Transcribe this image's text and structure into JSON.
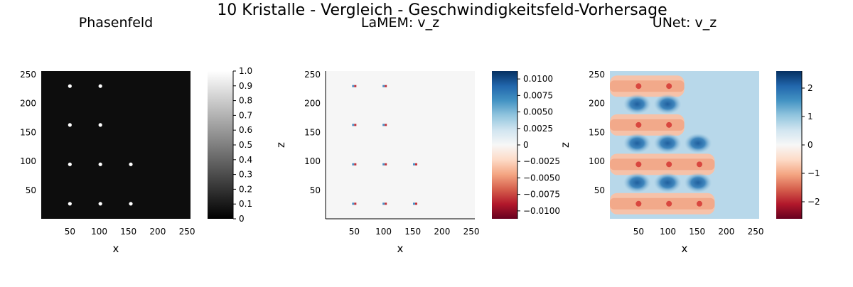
{
  "title": "10 Kristalle - Vergleich - Geschwindigkeitsfeld-Vorhersage",
  "chart_data": [
    {
      "type": "heatmap",
      "title": "Phasenfeld",
      "xlabel": "x",
      "ylabel": "",
      "xlim": [
        1,
        256
      ],
      "ylim": [
        1,
        256
      ],
      "xticks": [
        "50",
        "100",
        "150",
        "200",
        "250"
      ],
      "yticks": [
        "50",
        "100",
        "150",
        "200",
        "250"
      ],
      "background_value": 0,
      "crystals": [
        {
          "x": 50,
          "z": 230
        },
        {
          "x": 102,
          "z": 230
        },
        {
          "x": 50,
          "z": 163
        },
        {
          "x": 102,
          "z": 163
        },
        {
          "x": 50,
          "z": 95
        },
        {
          "x": 102,
          "z": 95
        },
        {
          "x": 154,
          "z": 95
        },
        {
          "x": 50,
          "z": 27
        },
        {
          "x": 102,
          "z": 27
        },
        {
          "x": 154,
          "z": 27
        }
      ],
      "crystal_value": 1,
      "colorbar": {
        "colormap": "grays",
        "range": [
          0,
          1
        ],
        "ticks": [
          "0",
          "0.1",
          "0.2",
          "0.3",
          "0.4",
          "0.5",
          "0.6",
          "0.7",
          "0.8",
          "0.9",
          "1.0"
        ],
        "tick_values": [
          0,
          0.1,
          0.2,
          0.3,
          0.4,
          0.5,
          0.6,
          0.7,
          0.8,
          0.9,
          1.0
        ]
      }
    },
    {
      "type": "heatmap",
      "title": "LaMEM: v_z",
      "xlabel": "x",
      "ylabel": "z",
      "xlim": [
        1,
        256
      ],
      "ylim": [
        1,
        256
      ],
      "xticks": [
        "50",
        "100",
        "150",
        "200",
        "250"
      ],
      "yticks": [
        "50",
        "100",
        "150",
        "200",
        "250"
      ],
      "background_value": 0,
      "colorbar": {
        "colormap": "RdBu",
        "range": [
          -0.0112,
          0.0112
        ],
        "ticks": [
          "0.0100",
          "0.0075",
          "0.0050",
          "0.0025",
          "0",
          "−0.0025",
          "−0.0050",
          "−0.0075",
          "−0.0100"
        ],
        "tick_values": [
          0.01,
          0.0075,
          0.005,
          0.0025,
          0,
          -0.0025,
          -0.005,
          -0.0075,
          -0.01
        ]
      }
    },
    {
      "type": "heatmap",
      "title": "UNet: v_z",
      "xlabel": "x",
      "ylabel": "z",
      "xlim": [
        1,
        256
      ],
      "ylim": [
        1,
        256
      ],
      "xticks": [
        "50",
        "100",
        "150",
        "200",
        "250"
      ],
      "yticks": [
        "50",
        "100",
        "150",
        "200",
        "250"
      ],
      "background_value": 0.5,
      "colorbar": {
        "colormap": "RdBu",
        "range": [
          -2.6,
          2.6
        ],
        "ticks": [
          "2",
          "1",
          "0",
          "−1",
          "−2"
        ],
        "tick_values": [
          2,
          1,
          0,
          -1,
          -2
        ]
      }
    }
  ]
}
